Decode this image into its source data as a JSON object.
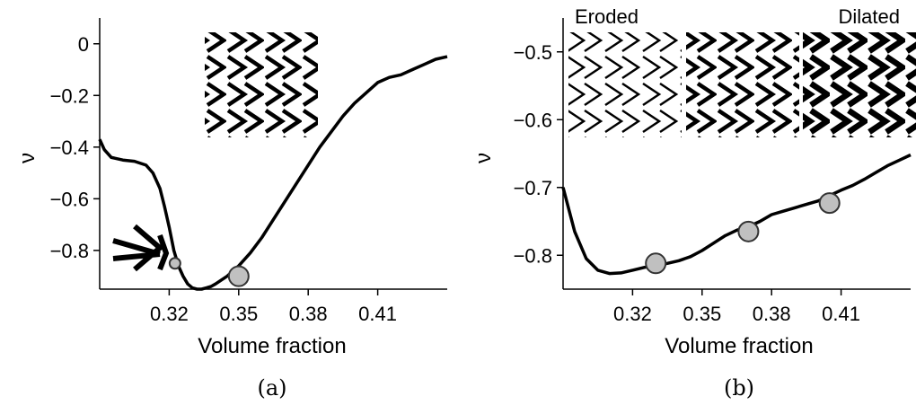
{
  "chart_data": [
    {
      "type": "line",
      "panel_label": "(a)",
      "xlabel": "Volume fraction",
      "ylabel": "ν",
      "xlim": [
        0.29,
        0.44
      ],
      "ylim": [
        -0.95,
        0.1
      ],
      "x_ticks": [
        "0.32",
        "0.35",
        "0.38",
        "0.41"
      ],
      "y_ticks": [
        "0",
        "−0.2",
        "−0.4",
        "−0.6",
        "−0.8"
      ],
      "series": [
        {
          "x": [
            0.29,
            0.292,
            0.295,
            0.3,
            0.305,
            0.31,
            0.313,
            0.316,
            0.318,
            0.32,
            0.322,
            0.324,
            0.326,
            0.328,
            0.33,
            0.332,
            0.334,
            0.336,
            0.338,
            0.34,
            0.345,
            0.35,
            0.355,
            0.36,
            0.365,
            0.37,
            0.375,
            0.38,
            0.385,
            0.39,
            0.395,
            0.4,
            0.405,
            0.41,
            0.415,
            0.42,
            0.425,
            0.43,
            0.435,
            0.44
          ],
          "y": [
            -0.37,
            -0.41,
            -0.44,
            -0.45,
            -0.455,
            -0.47,
            -0.5,
            -0.56,
            -0.63,
            -0.71,
            -0.8,
            -0.86,
            -0.9,
            -0.93,
            -0.945,
            -0.95,
            -0.95,
            -0.945,
            -0.94,
            -0.93,
            -0.9,
            -0.86,
            -0.81,
            -0.75,
            -0.68,
            -0.61,
            -0.54,
            -0.47,
            -0.4,
            -0.34,
            -0.28,
            -0.23,
            -0.19,
            -0.15,
            -0.13,
            -0.12,
            -0.1,
            -0.08,
            -0.06,
            -0.05
          ]
        }
      ],
      "markers": [
        {
          "x": 0.3225,
          "y": -0.85,
          "size": "small"
        },
        {
          "x": 0.35,
          "y": -0.9,
          "size": "large"
        }
      ]
    },
    {
      "type": "line",
      "panel_label": "(b)",
      "xlabel": "Volume fraction",
      "ylabel": "ν",
      "xlim": [
        0.29,
        0.44
      ],
      "ylim": [
        -0.85,
        -0.45
      ],
      "x_ticks": [
        "0.32",
        "0.35",
        "0.38",
        "0.41"
      ],
      "y_ticks": [
        "−0.5",
        "−0.6",
        "−0.7",
        "−0.8"
      ],
      "inset_labels": [
        "Eroded",
        "Dilated"
      ],
      "series": [
        {
          "x": [
            0.29,
            0.295,
            0.3,
            0.305,
            0.31,
            0.315,
            0.32,
            0.325,
            0.33,
            0.335,
            0.34,
            0.345,
            0.35,
            0.355,
            0.36,
            0.365,
            0.37,
            0.375,
            0.38,
            0.385,
            0.39,
            0.395,
            0.4,
            0.405,
            0.41,
            0.415,
            0.42,
            0.425,
            0.43,
            0.435,
            0.44
          ],
          "y": [
            -0.7,
            -0.765,
            -0.805,
            -0.822,
            -0.827,
            -0.826,
            -0.822,
            -0.818,
            -0.815,
            -0.812,
            -0.808,
            -0.802,
            -0.793,
            -0.782,
            -0.771,
            -0.763,
            -0.758,
            -0.75,
            -0.74,
            -0.735,
            -0.73,
            -0.725,
            -0.72,
            -0.712,
            -0.704,
            -0.697,
            -0.688,
            -0.678,
            -0.668,
            -0.66,
            -0.652
          ]
        }
      ],
      "markers": [
        {
          "x": 0.33,
          "y": -0.812,
          "size": "large"
        },
        {
          "x": 0.37,
          "y": -0.765,
          "size": "large"
        },
        {
          "x": 0.405,
          "y": -0.723,
          "size": "large"
        }
      ]
    }
  ]
}
